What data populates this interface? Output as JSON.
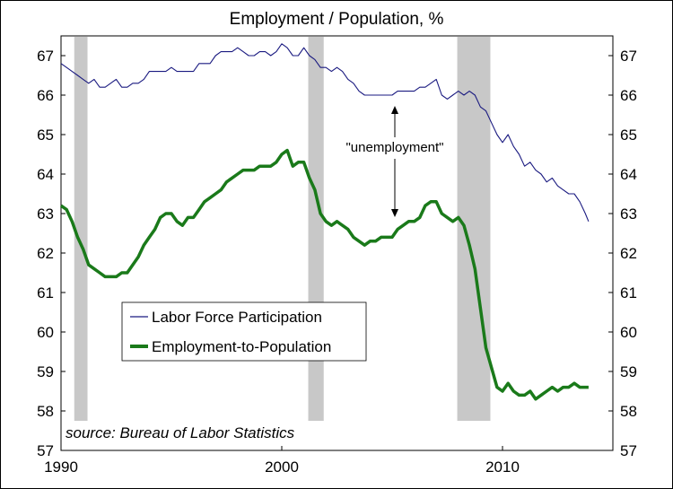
{
  "chart_data": {
    "type": "line",
    "title": "Employment / Population, %",
    "xlabel": "",
    "ylabel": "",
    "xlim": [
      1990,
      2015
    ],
    "ylim": [
      57,
      67.5
    ],
    "x_ticks": [
      {
        "value": 1990,
        "label": "1990"
      },
      {
        "value": 2000,
        "label": "2000"
      },
      {
        "value": 2010,
        "label": "2010"
      }
    ],
    "y_ticks": [
      {
        "value": 57,
        "label": "57"
      },
      {
        "value": 58,
        "label": "58"
      },
      {
        "value": 59,
        "label": "59"
      },
      {
        "value": 60,
        "label": "60"
      },
      {
        "value": 61,
        "label": "61"
      },
      {
        "value": 62,
        "label": "62"
      },
      {
        "value": 63,
        "label": "63"
      },
      {
        "value": 64,
        "label": "64"
      },
      {
        "value": 65,
        "label": "65"
      },
      {
        "value": 66,
        "label": "66"
      },
      {
        "value": 67,
        "label": "67"
      }
    ],
    "recessions": [
      {
        "start": 1990.6,
        "end": 1991.2
      },
      {
        "start": 2001.2,
        "end": 2001.9
      },
      {
        "start": 2007.95,
        "end": 2009.45
      }
    ],
    "recession_color": "#c8c8c8",
    "grid": false,
    "legend_position": "center-left",
    "series": [
      {
        "name": "Labor Force Participation",
        "color": "#1a1a80",
        "stroke": "thin",
        "x": [
          1990.0,
          1990.25,
          1990.5,
          1990.75,
          1991.0,
          1991.25,
          1991.5,
          1991.75,
          1992.0,
          1992.25,
          1992.5,
          1992.75,
          1993.0,
          1993.25,
          1993.5,
          1993.75,
          1994.0,
          1994.25,
          1994.5,
          1994.75,
          1995.0,
          1995.25,
          1995.5,
          1995.75,
          1996.0,
          1996.25,
          1996.5,
          1996.75,
          1997.0,
          1997.25,
          1997.5,
          1997.75,
          1998.0,
          1998.25,
          1998.5,
          1998.75,
          1999.0,
          1999.25,
          1999.5,
          1999.75,
          2000.0,
          2000.25,
          2000.5,
          2000.75,
          2001.0,
          2001.25,
          2001.5,
          2001.75,
          2002.0,
          2002.25,
          2002.5,
          2002.75,
          2003.0,
          2003.25,
          2003.5,
          2003.75,
          2004.0,
          2004.25,
          2004.5,
          2004.75,
          2005.0,
          2005.25,
          2005.5,
          2005.75,
          2006.0,
          2006.25,
          2006.5,
          2006.75,
          2007.0,
          2007.25,
          2007.5,
          2007.75,
          2008.0,
          2008.25,
          2008.5,
          2008.75,
          2009.0,
          2009.25,
          2009.5,
          2009.75,
          2010.0,
          2010.25,
          2010.5,
          2010.75,
          2011.0,
          2011.25,
          2011.5,
          2011.75,
          2012.0,
          2012.25,
          2012.5,
          2012.75,
          2013.0,
          2013.25,
          2013.5,
          2013.75,
          2013.9
        ],
        "values": [
          66.8,
          66.7,
          66.6,
          66.5,
          66.4,
          66.3,
          66.4,
          66.2,
          66.2,
          66.3,
          66.4,
          66.2,
          66.2,
          66.3,
          66.3,
          66.4,
          66.6,
          66.6,
          66.6,
          66.6,
          66.7,
          66.6,
          66.6,
          66.6,
          66.6,
          66.8,
          66.8,
          66.8,
          67.0,
          67.1,
          67.1,
          67.1,
          67.2,
          67.1,
          67.0,
          67.0,
          67.1,
          67.1,
          67.0,
          67.1,
          67.3,
          67.2,
          67.0,
          67.0,
          67.2,
          67.0,
          66.9,
          66.7,
          66.7,
          66.6,
          66.7,
          66.6,
          66.4,
          66.3,
          66.1,
          66.0,
          66.0,
          66.0,
          66.0,
          66.0,
          66.0,
          66.1,
          66.1,
          66.1,
          66.1,
          66.2,
          66.2,
          66.3,
          66.4,
          66.0,
          65.9,
          66.0,
          66.1,
          66.0,
          66.1,
          66.0,
          65.7,
          65.6,
          65.3,
          65.0,
          64.8,
          65.0,
          64.7,
          64.5,
          64.2,
          64.3,
          64.1,
          64.0,
          63.8,
          63.9,
          63.7,
          63.6,
          63.5,
          63.5,
          63.3,
          63.0,
          62.8
        ]
      },
      {
        "name": "Employment-to-Population",
        "color": "#1a7a1a",
        "stroke": "thick",
        "x": [
          1990.0,
          1990.25,
          1990.5,
          1990.75,
          1991.0,
          1991.25,
          1991.5,
          1991.75,
          1992.0,
          1992.25,
          1992.5,
          1992.75,
          1993.0,
          1993.25,
          1993.5,
          1993.75,
          1994.0,
          1994.25,
          1994.5,
          1994.75,
          1995.0,
          1995.25,
          1995.5,
          1995.75,
          1996.0,
          1996.25,
          1996.5,
          1996.75,
          1997.0,
          1997.25,
          1997.5,
          1997.75,
          1998.0,
          1998.25,
          1998.5,
          1998.75,
          1999.0,
          1999.25,
          1999.5,
          1999.75,
          2000.0,
          2000.25,
          2000.5,
          2000.75,
          2001.0,
          2001.25,
          2001.5,
          2001.75,
          2002.0,
          2002.25,
          2002.5,
          2002.75,
          2003.0,
          2003.25,
          2003.5,
          2003.75,
          2004.0,
          2004.25,
          2004.5,
          2004.75,
          2005.0,
          2005.25,
          2005.5,
          2005.75,
          2006.0,
          2006.25,
          2006.5,
          2006.75,
          2007.0,
          2007.25,
          2007.5,
          2007.75,
          2008.0,
          2008.25,
          2008.5,
          2008.75,
          2009.0,
          2009.25,
          2009.5,
          2009.75,
          2010.0,
          2010.25,
          2010.5,
          2010.75,
          2011.0,
          2011.25,
          2011.5,
          2011.75,
          2012.0,
          2012.25,
          2012.5,
          2012.75,
          2013.0,
          2013.25,
          2013.5,
          2013.75,
          2013.9
        ],
        "values": [
          63.2,
          63.1,
          62.8,
          62.4,
          62.1,
          61.7,
          61.6,
          61.5,
          61.4,
          61.4,
          61.4,
          61.5,
          61.5,
          61.7,
          61.9,
          62.2,
          62.4,
          62.6,
          62.9,
          63.0,
          63.0,
          62.8,
          62.7,
          62.9,
          62.9,
          63.1,
          63.3,
          63.4,
          63.5,
          63.6,
          63.8,
          63.9,
          64.0,
          64.1,
          64.1,
          64.1,
          64.2,
          64.2,
          64.2,
          64.3,
          64.5,
          64.6,
          64.2,
          64.3,
          64.3,
          63.9,
          63.6,
          63.0,
          62.8,
          62.7,
          62.8,
          62.7,
          62.6,
          62.4,
          62.3,
          62.2,
          62.3,
          62.3,
          62.4,
          62.4,
          62.4,
          62.6,
          62.7,
          62.8,
          62.8,
          62.9,
          63.2,
          63.3,
          63.3,
          63.0,
          62.9,
          62.8,
          62.9,
          62.7,
          62.2,
          61.6,
          60.6,
          59.6,
          59.1,
          58.6,
          58.5,
          58.7,
          58.5,
          58.4,
          58.4,
          58.5,
          58.3,
          58.4,
          58.5,
          58.6,
          58.5,
          58.6,
          58.6,
          58.7,
          58.6,
          58.6,
          58.6
        ]
      }
    ],
    "annotations": [
      {
        "text": "\"unemployment\""
      }
    ],
    "source": "source: Bureau of Labor Statistics"
  }
}
